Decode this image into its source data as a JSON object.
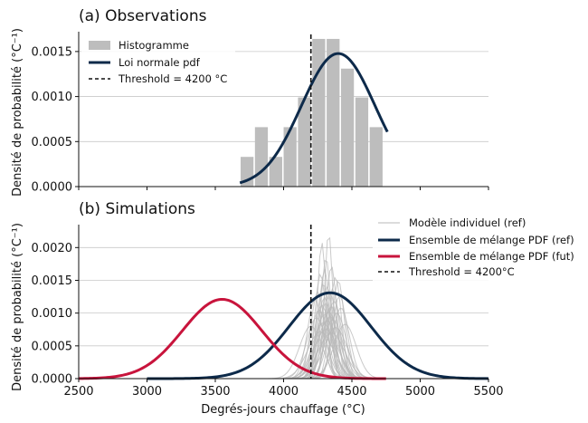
{
  "chart_data": [
    {
      "type": "bar",
      "panel": "a",
      "title": "(a) Observations",
      "ylabel": "Densité de probabilité (°C⁻¹)",
      "xlabel": "",
      "xlim": [
        2500,
        5500
      ],
      "ylim": [
        0,
        0.00172
      ],
      "yticks": [
        0.0,
        0.0005,
        0.001,
        0.0015
      ],
      "ytick_labels": [
        "0.0000",
        "0.0005",
        "0.0010",
        "0.0015"
      ],
      "grid": "horizontal",
      "legend_position": "top-left",
      "histogram": {
        "name": "Histogramme",
        "color": "#bdbdbd",
        "bins": [
          {
            "x0": 3680,
            "x1": 3785,
            "value": 0.00033
          },
          {
            "x0": 3785,
            "x1": 3890,
            "value": 0.00066
          },
          {
            "x0": 3890,
            "x1": 3995,
            "value": 0.00033
          },
          {
            "x0": 3995,
            "x1": 4100,
            "value": 0.00066
          },
          {
            "x0": 4100,
            "x1": 4205,
            "value": 0.00099
          },
          {
            "x0": 4205,
            "x1": 4310,
            "value": 0.00164
          },
          {
            "x0": 4310,
            "x1": 4415,
            "value": 0.00164
          },
          {
            "x0": 4415,
            "x1": 4520,
            "value": 0.00131
          },
          {
            "x0": 4520,
            "x1": 4625,
            "value": 0.00099
          },
          {
            "x0": 4625,
            "x1": 4730,
            "value": 0.00066
          }
        ]
      },
      "series": [
        {
          "name": "Loi normale pdf",
          "color": "#0d2a4a",
          "mean": 4400,
          "sd": 270,
          "x_range": [
            3680,
            4760
          ]
        }
      ],
      "threshold": {
        "name": "Threshold = 4200 °C",
        "x": 4200
      }
    },
    {
      "type": "line",
      "panel": "b",
      "title": "(b) Simulations",
      "ylabel": "Densité de probabilité (°C⁻¹)",
      "xlabel": "Degrés-jours chauffage (°C)",
      "xlim": [
        2500,
        5500
      ],
      "xticks": [
        2500,
        3000,
        3500,
        4000,
        4500,
        5000,
        5500
      ],
      "xtick_labels": [
        "2500",
        "3000",
        "3500",
        "4000",
        "4500",
        "5000",
        "5500"
      ],
      "ylim": [
        0,
        0.00235
      ],
      "yticks": [
        0.0,
        0.0005,
        0.001,
        0.0015,
        0.002
      ],
      "ytick_labels": [
        "0.0000",
        "0.0005",
        "0.0010",
        "0.0015",
        "0.0020"
      ],
      "grid": "horizontal",
      "legend_position": "top-right",
      "individual_models": {
        "name": "Modèle individuel (ref)",
        "color": "#b8b8b8",
        "count": 36,
        "x_range": [
          3550,
          5200
        ],
        "means": [
          4330,
          4280,
          4310,
          4350,
          4300,
          4270,
          4380,
          4400,
          4290,
          4320,
          4360,
          4250,
          4340,
          4410,
          4300,
          4230,
          4370,
          4310,
          4280,
          4350,
          4420,
          4260,
          4330,
          4390,
          4300,
          4340,
          4240,
          4360,
          4320,
          4290,
          4450,
          4200,
          4380,
          4310,
          4270,
          4350
        ],
        "peaks": [
          0.00223,
          0.00208,
          0.00185,
          0.00172,
          0.00167,
          0.0016,
          0.00155,
          0.0015,
          0.00145,
          0.0014,
          0.00137,
          0.00133,
          0.0013,
          0.00127,
          0.00124,
          0.00121,
          0.00118,
          0.00115,
          0.00112,
          0.0011,
          0.00108,
          0.00105,
          0.00103,
          0.001,
          0.00098,
          0.00095,
          0.00093,
          0.0009,
          0.00088,
          0.00085,
          0.00083,
          0.0008,
          0.00078,
          0.00075,
          0.00072,
          0.0007
        ]
      },
      "series": [
        {
          "name": "Ensemble de mélange PDF (ref)",
          "color": "#0d2a4a",
          "mean": 4340,
          "peak": 0.00131,
          "x_range": [
            3000,
            5500
          ]
        },
        {
          "name": "Ensemble de mélange PDF (fut)",
          "color": "#c8143c",
          "mean": 3550,
          "peak": 0.00121,
          "x_range": [
            2500,
            4750
          ]
        }
      ],
      "threshold": {
        "name": "Threshold = 4200°C",
        "x": 4200
      }
    }
  ]
}
